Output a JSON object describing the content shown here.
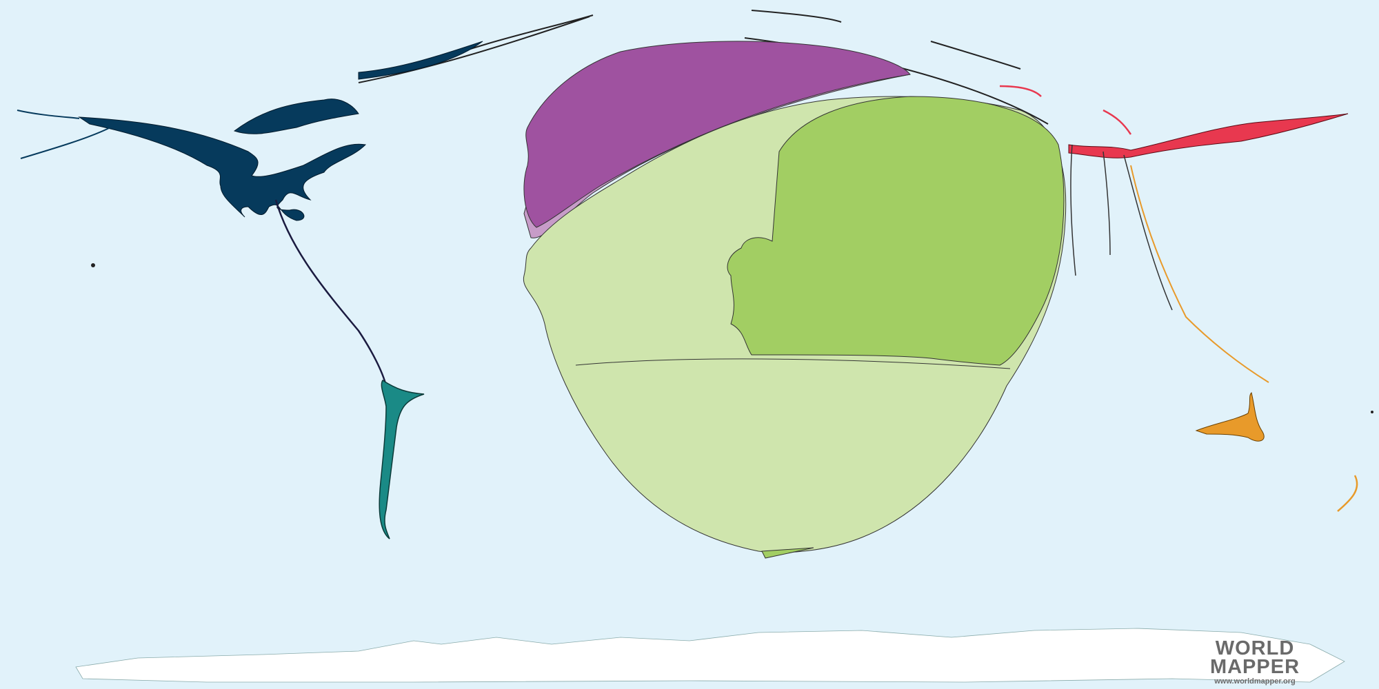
{
  "map": {
    "type": "cartogram",
    "colors": {
      "ocean": "#e1f2fa",
      "north_america": "#063a5c",
      "central_south_america": "#1a8a86",
      "europe_northern": "#9f52a0",
      "europe_light": "#c79cc8",
      "africa_dark": "#a2ce63",
      "africa_light": "#cfe5ad",
      "asia_east": "#e8384f",
      "asia_southeast": "#e89a2a",
      "antarctica": "#ffffff"
    }
  },
  "logo": {
    "line1": "WORLD",
    "line2": "MAPPER",
    "url": "www.worldmapper.org",
    "icon": "globe-icon"
  }
}
